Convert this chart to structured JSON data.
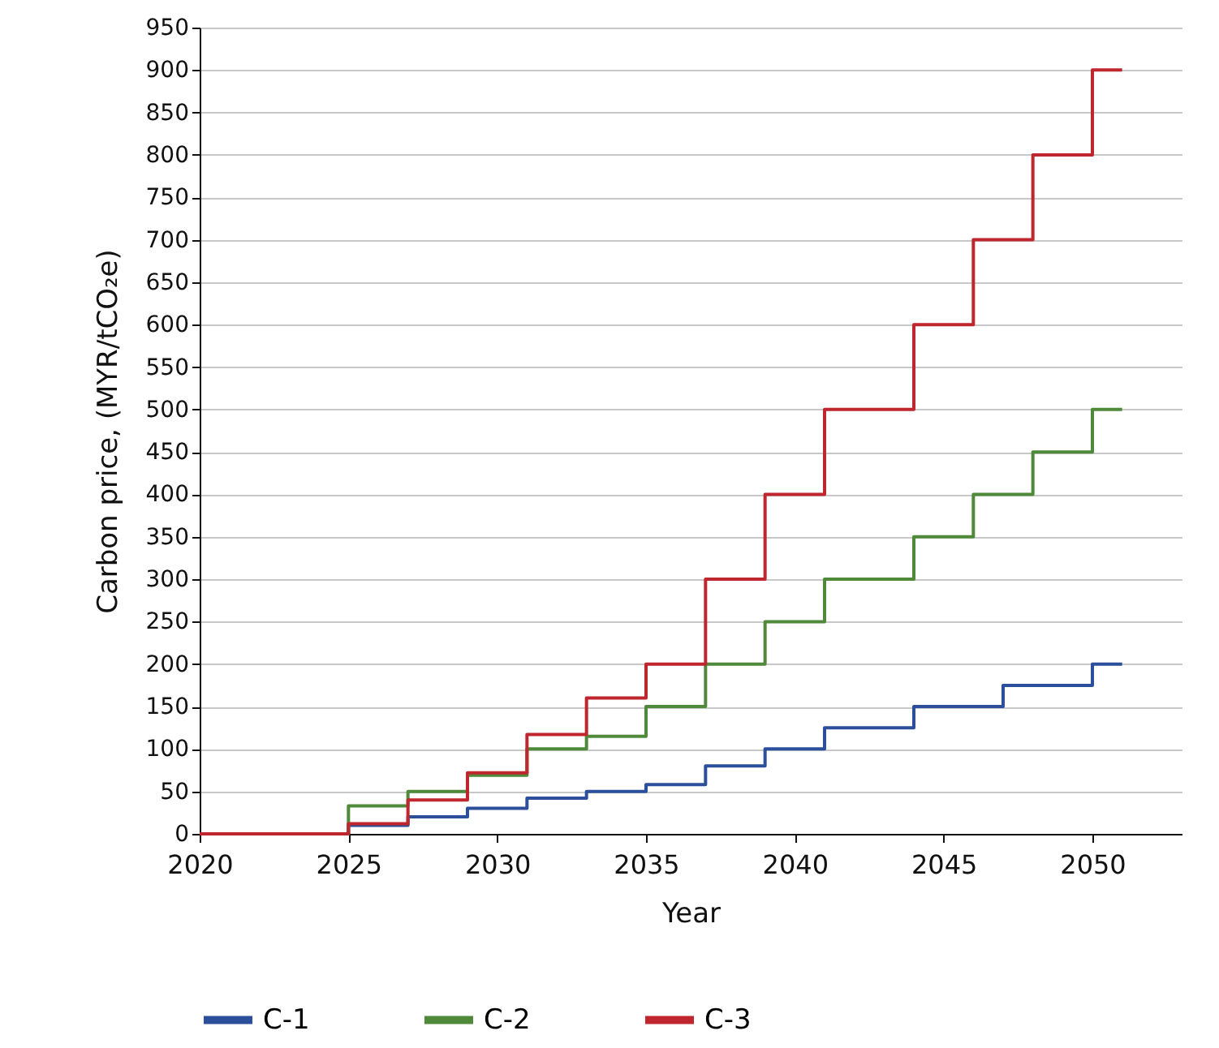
{
  "chart_data": {
    "type": "step",
    "xlabel": "Year",
    "ylabel": "Carbon price, (MYR/tCO₂e)",
    "xlim": [
      2020,
      2053
    ],
    "xticks": [
      2020,
      2025,
      2030,
      2035,
      2040,
      2045,
      2050
    ],
    "ylim": [
      0,
      950
    ],
    "yticks": [
      0,
      50,
      100,
      150,
      200,
      250,
      300,
      350,
      400,
      450,
      500,
      550,
      600,
      650,
      700,
      750,
      800,
      850,
      900,
      950
    ],
    "grid": "y",
    "legend": "bottom",
    "line_style": "solid",
    "marker": "none",
    "series": [
      {
        "name": "C-1",
        "color": "#2b4f9a",
        "x": [
          2020,
          2025,
          2027,
          2029,
          2031,
          2033,
          2035,
          2037,
          2039,
          2041,
          2044,
          2047,
          2050,
          2051
        ],
        "values": [
          0,
          10,
          20,
          30,
          42,
          50,
          58,
          80,
          100,
          125,
          150,
          175,
          200,
          200
        ]
      },
      {
        "name": "C-2",
        "color": "#4e8a3a",
        "x": [
          2020,
          2025,
          2027,
          2029,
          2031,
          2033,
          2035,
          2037,
          2039,
          2041,
          2044,
          2046,
          2048,
          2050,
          2051
        ],
        "values": [
          0,
          33,
          50,
          69,
          100,
          115,
          150,
          200,
          250,
          300,
          350,
          400,
          450,
          500,
          500
        ]
      },
      {
        "name": "C-3",
        "color": "#c0262d",
        "x": [
          2020,
          2025,
          2027,
          2029,
          2031,
          2033,
          2035,
          2037,
          2039,
          2041,
          2044,
          2046,
          2048,
          2050,
          2051
        ],
        "values": [
          0,
          12,
          40,
          72,
          117,
          160,
          200,
          300,
          400,
          500,
          600,
          700,
          800,
          900,
          900
        ]
      }
    ]
  }
}
